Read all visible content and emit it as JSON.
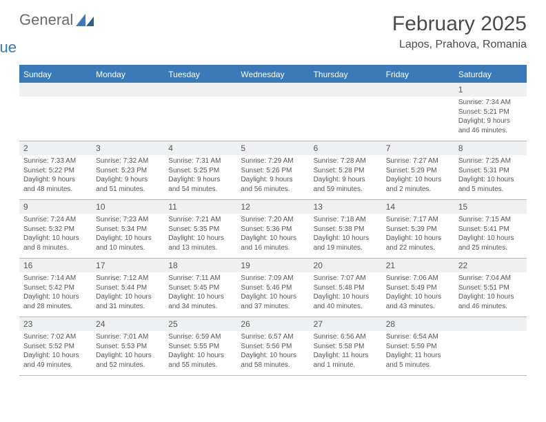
{
  "logo": {
    "word1": "General",
    "word2": "Blue",
    "sail_color": "#3a7ab8",
    "text_gray": "#6a6a6a"
  },
  "title": "February 2025",
  "location": "Lapos, Prahova, Romania",
  "colors": {
    "header_bar": "#3a7ab8",
    "header_text": "#ffffff",
    "daynum_bg": "#eef0f2",
    "body_text": "#555555",
    "rule": "#b8b8b8"
  },
  "fonts": {
    "title_size": 30,
    "location_size": 16,
    "dayhdr_size": 12,
    "daynum_size": 12,
    "cell_size": 10
  },
  "day_names": [
    "Sunday",
    "Monday",
    "Tuesday",
    "Wednesday",
    "Thursday",
    "Friday",
    "Saturday"
  ],
  "weeks": [
    {
      "nums": [
        "",
        "",
        "",
        "",
        "",
        "",
        "1"
      ],
      "cells": [
        null,
        null,
        null,
        null,
        null,
        null,
        {
          "sunrise": "Sunrise: 7:34 AM",
          "sunset": "Sunset: 5:21 PM",
          "daylight": "Daylight: 9 hours and 46 minutes."
        }
      ]
    },
    {
      "nums": [
        "2",
        "3",
        "4",
        "5",
        "6",
        "7",
        "8"
      ],
      "cells": [
        {
          "sunrise": "Sunrise: 7:33 AM",
          "sunset": "Sunset: 5:22 PM",
          "daylight": "Daylight: 9 hours and 48 minutes."
        },
        {
          "sunrise": "Sunrise: 7:32 AM",
          "sunset": "Sunset: 5:23 PM",
          "daylight": "Daylight: 9 hours and 51 minutes."
        },
        {
          "sunrise": "Sunrise: 7:31 AM",
          "sunset": "Sunset: 5:25 PM",
          "daylight": "Daylight: 9 hours and 54 minutes."
        },
        {
          "sunrise": "Sunrise: 7:29 AM",
          "sunset": "Sunset: 5:26 PM",
          "daylight": "Daylight: 9 hours and 56 minutes."
        },
        {
          "sunrise": "Sunrise: 7:28 AM",
          "sunset": "Sunset: 5:28 PM",
          "daylight": "Daylight: 9 hours and 59 minutes."
        },
        {
          "sunrise": "Sunrise: 7:27 AM",
          "sunset": "Sunset: 5:29 PM",
          "daylight": "Daylight: 10 hours and 2 minutes."
        },
        {
          "sunrise": "Sunrise: 7:25 AM",
          "sunset": "Sunset: 5:31 PM",
          "daylight": "Daylight: 10 hours and 5 minutes."
        }
      ]
    },
    {
      "nums": [
        "9",
        "10",
        "11",
        "12",
        "13",
        "14",
        "15"
      ],
      "cells": [
        {
          "sunrise": "Sunrise: 7:24 AM",
          "sunset": "Sunset: 5:32 PM",
          "daylight": "Daylight: 10 hours and 8 minutes."
        },
        {
          "sunrise": "Sunrise: 7:23 AM",
          "sunset": "Sunset: 5:34 PM",
          "daylight": "Daylight: 10 hours and 10 minutes."
        },
        {
          "sunrise": "Sunrise: 7:21 AM",
          "sunset": "Sunset: 5:35 PM",
          "daylight": "Daylight: 10 hours and 13 minutes."
        },
        {
          "sunrise": "Sunrise: 7:20 AM",
          "sunset": "Sunset: 5:36 PM",
          "daylight": "Daylight: 10 hours and 16 minutes."
        },
        {
          "sunrise": "Sunrise: 7:18 AM",
          "sunset": "Sunset: 5:38 PM",
          "daylight": "Daylight: 10 hours and 19 minutes."
        },
        {
          "sunrise": "Sunrise: 7:17 AM",
          "sunset": "Sunset: 5:39 PM",
          "daylight": "Daylight: 10 hours and 22 minutes."
        },
        {
          "sunrise": "Sunrise: 7:15 AM",
          "sunset": "Sunset: 5:41 PM",
          "daylight": "Daylight: 10 hours and 25 minutes."
        }
      ]
    },
    {
      "nums": [
        "16",
        "17",
        "18",
        "19",
        "20",
        "21",
        "22"
      ],
      "cells": [
        {
          "sunrise": "Sunrise: 7:14 AM",
          "sunset": "Sunset: 5:42 PM",
          "daylight": "Daylight: 10 hours and 28 minutes."
        },
        {
          "sunrise": "Sunrise: 7:12 AM",
          "sunset": "Sunset: 5:44 PM",
          "daylight": "Daylight: 10 hours and 31 minutes."
        },
        {
          "sunrise": "Sunrise: 7:11 AM",
          "sunset": "Sunset: 5:45 PM",
          "daylight": "Daylight: 10 hours and 34 minutes."
        },
        {
          "sunrise": "Sunrise: 7:09 AM",
          "sunset": "Sunset: 5:46 PM",
          "daylight": "Daylight: 10 hours and 37 minutes."
        },
        {
          "sunrise": "Sunrise: 7:07 AM",
          "sunset": "Sunset: 5:48 PM",
          "daylight": "Daylight: 10 hours and 40 minutes."
        },
        {
          "sunrise": "Sunrise: 7:06 AM",
          "sunset": "Sunset: 5:49 PM",
          "daylight": "Daylight: 10 hours and 43 minutes."
        },
        {
          "sunrise": "Sunrise: 7:04 AM",
          "sunset": "Sunset: 5:51 PM",
          "daylight": "Daylight: 10 hours and 46 minutes."
        }
      ]
    },
    {
      "nums": [
        "23",
        "24",
        "25",
        "26",
        "27",
        "28",
        ""
      ],
      "cells": [
        {
          "sunrise": "Sunrise: 7:02 AM",
          "sunset": "Sunset: 5:52 PM",
          "daylight": "Daylight: 10 hours and 49 minutes."
        },
        {
          "sunrise": "Sunrise: 7:01 AM",
          "sunset": "Sunset: 5:53 PM",
          "daylight": "Daylight: 10 hours and 52 minutes."
        },
        {
          "sunrise": "Sunrise: 6:59 AM",
          "sunset": "Sunset: 5:55 PM",
          "daylight": "Daylight: 10 hours and 55 minutes."
        },
        {
          "sunrise": "Sunrise: 6:57 AM",
          "sunset": "Sunset: 5:56 PM",
          "daylight": "Daylight: 10 hours and 58 minutes."
        },
        {
          "sunrise": "Sunrise: 6:56 AM",
          "sunset": "Sunset: 5:58 PM",
          "daylight": "Daylight: 11 hours and 1 minute."
        },
        {
          "sunrise": "Sunrise: 6:54 AM",
          "sunset": "Sunset: 5:59 PM",
          "daylight": "Daylight: 11 hours and 5 minutes."
        },
        null
      ]
    }
  ]
}
